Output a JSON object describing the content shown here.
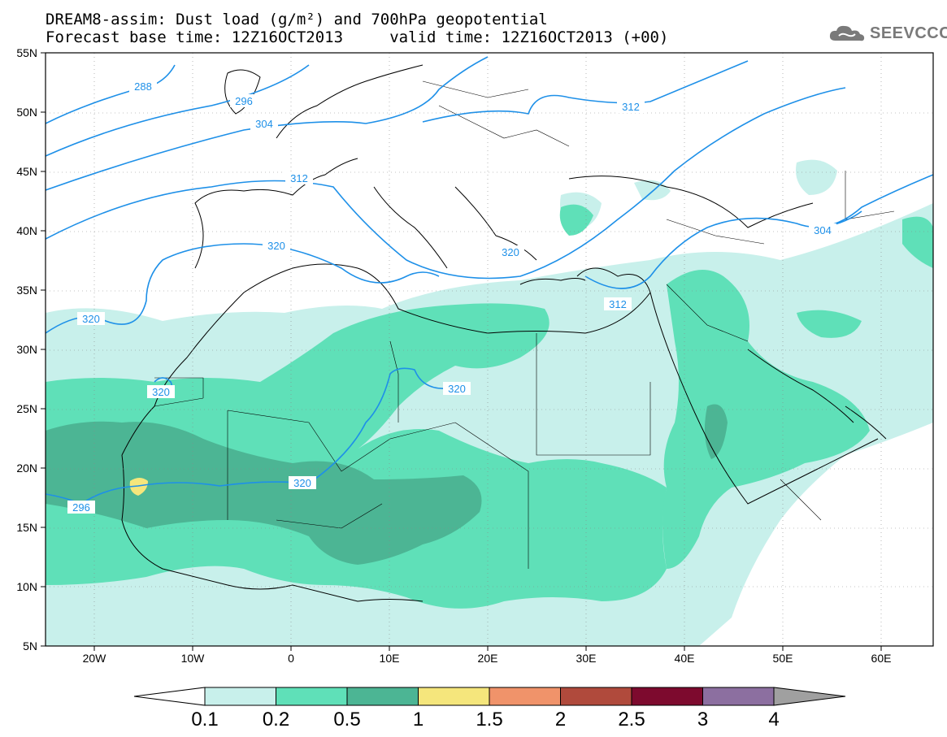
{
  "header": {
    "title_line1": "DREAM8-assim: Dust load (g/m²) and 700hPa geopotential",
    "title_line2": "Forecast base time: 12Z16OCT2013     valid time: 12Z16OCT2013 (+00)",
    "logo_text": "SEEVCCC"
  },
  "map": {
    "lat_labels": [
      "55N",
      "50N",
      "45N",
      "40N",
      "35N",
      "30N",
      "25N",
      "20N",
      "15N",
      "10N",
      "5N"
    ],
    "lon_labels": [
      "20W",
      "10W",
      "0",
      "10E",
      "20E",
      "30E",
      "40E",
      "50E",
      "60E"
    ],
    "contour_labels": [
      "288",
      "296",
      "304",
      "312",
      "320",
      "320",
      "320",
      "320",
      "320",
      "296",
      "312",
      "312",
      "304",
      "320"
    ],
    "contour_color": "#1e90e8",
    "coast_color": "#000000"
  },
  "colorbar": {
    "labels": [
      "0.1",
      "0.2",
      "0.5",
      "1",
      "1.5",
      "2",
      "2.5",
      "3",
      "4"
    ],
    "colors": [
      "#c8f0eb",
      "#5fe0b8",
      "#4cb594",
      "#f5e67c",
      "#f0936a",
      "#b04a3c",
      "#7d0a2e",
      "#8c6fa0"
    ],
    "low_color": "#ffffff",
    "high_color": "#a0a0a0"
  }
}
